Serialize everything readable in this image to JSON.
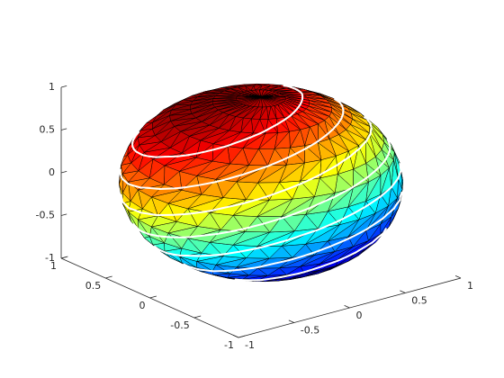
{
  "chart_data": {
    "type": "surface",
    "xlim": [
      -1,
      1
    ],
    "ylim": [
      -1,
      1
    ],
    "zlim": [
      -1,
      1
    ],
    "xticks": [
      -1,
      -0.5,
      0,
      0.5,
      1
    ],
    "yticks": [
      -1,
      -0.5,
      0,
      0.5,
      1
    ],
    "zticks": [
      -1,
      -0.5,
      0,
      0.5,
      1
    ],
    "colormap": "jet",
    "edge_color": "#000000",
    "contour_color": "#ffffff"
  }
}
